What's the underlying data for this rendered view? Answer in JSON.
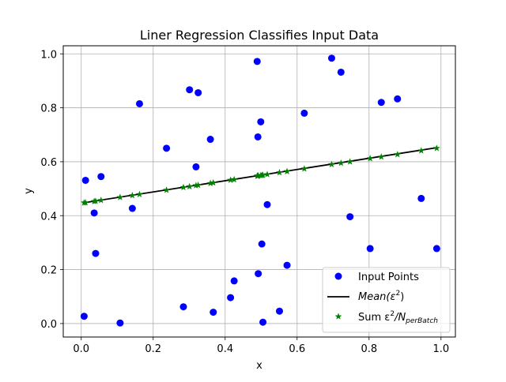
{
  "chart_data": {
    "type": "scatter",
    "title": "Liner Regression Classifies Input Data",
    "xlabel": "x",
    "ylabel": "y",
    "xlim": [
      -0.05,
      1.04
    ],
    "ylim": [
      -0.05,
      1.03
    ],
    "xticks": [
      0.0,
      0.2,
      0.4,
      0.6,
      0.8,
      1.0
    ],
    "xtick_labels": [
      "0.0",
      "0.2",
      "0.4",
      "0.6",
      "0.8",
      "1.0"
    ],
    "yticks": [
      0.0,
      0.2,
      0.4,
      0.6,
      0.8,
      1.0
    ],
    "ytick_labels": [
      "0.0",
      "0.2",
      "0.4",
      "0.6",
      "0.8",
      "1.0"
    ],
    "grid": true,
    "legend_position": "lower-right",
    "series": [
      {
        "name": "Input Points",
        "kind": "points",
        "color": "#0000ff",
        "marker": "circle",
        "x": [
          0.008,
          0.012,
          0.036,
          0.04,
          0.055,
          0.108,
          0.142,
          0.162,
          0.237,
          0.284,
          0.301,
          0.319,
          0.325,
          0.359,
          0.367,
          0.415,
          0.425,
          0.489,
          0.491,
          0.492,
          0.499,
          0.502,
          0.505,
          0.517,
          0.551,
          0.572,
          0.62,
          0.696,
          0.722,
          0.747,
          0.803,
          0.834,
          0.879,
          0.945,
          0.988
        ],
        "y": [
          0.027,
          0.531,
          0.41,
          0.26,
          0.545,
          0.002,
          0.427,
          0.815,
          0.65,
          0.062,
          0.867,
          0.581,
          0.856,
          0.683,
          0.042,
          0.096,
          0.158,
          0.972,
          0.692,
          0.185,
          0.748,
          0.295,
          0.005,
          0.441,
          0.046,
          0.216,
          0.78,
          0.984,
          0.932,
          0.396,
          0.278,
          0.82,
          0.833,
          0.464,
          0.278
        ]
      },
      {
        "name": "$Mean(\\epsilon^2)$",
        "legend_label_main": "Mean(ε",
        "legend_label_sup": "2",
        "legend_label_end": ")",
        "kind": "line",
        "color": "#000000",
        "x": [
          0.008,
          0.988
        ],
        "y": [
          0.448,
          0.652
        ]
      },
      {
        "name": "Sum $\\epsilon^2/N_{perBatch}$",
        "legend_label_main": "Sum ε",
        "legend_label_sup": "2",
        "legend_label_mid": "/N",
        "legend_label_sub": "perBatch",
        "kind": "points",
        "color": "#008000",
        "marker": "star",
        "x": [
          0.008,
          0.012,
          0.036,
          0.04,
          0.055,
          0.108,
          0.142,
          0.162,
          0.237,
          0.284,
          0.301,
          0.319,
          0.325,
          0.359,
          0.367,
          0.415,
          0.425,
          0.489,
          0.491,
          0.492,
          0.499,
          0.502,
          0.505,
          0.517,
          0.551,
          0.572,
          0.62,
          0.696,
          0.722,
          0.747,
          0.803,
          0.834,
          0.879,
          0.945,
          0.988
        ],
        "y": [
          0.448,
          0.448,
          0.453,
          0.454,
          0.457,
          0.468,
          0.475,
          0.479,
          0.495,
          0.505,
          0.508,
          0.512,
          0.513,
          0.52,
          0.522,
          0.532,
          0.534,
          0.547,
          0.548,
          0.548,
          0.549,
          0.55,
          0.55,
          0.553,
          0.56,
          0.564,
          0.574,
          0.59,
          0.595,
          0.6,
          0.612,
          0.618,
          0.627,
          0.641,
          0.65
        ]
      }
    ]
  }
}
